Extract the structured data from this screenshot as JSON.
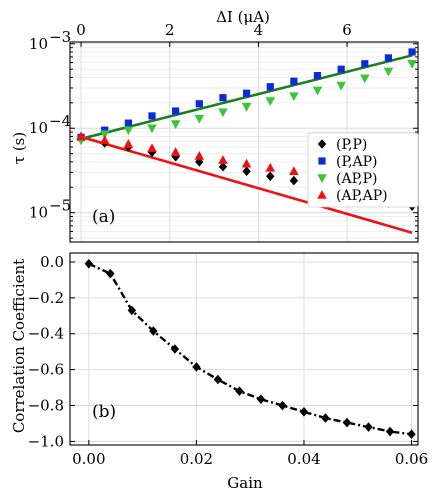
{
  "chart_data": [
    {
      "panel": "(a)",
      "type": "scatter",
      "xlabel_top": "ΔI (μA)",
      "ylabel": "τ (s)",
      "x_top_ticks": [
        "0",
        "2",
        "4",
        "6"
      ],
      "x_top_range": [
        -0.25,
        7.6
      ],
      "y_scale": "log",
      "y_ticks": [
        "10^-5",
        "10^-4",
        "10^-3"
      ],
      "ylim": [
        4.5e-06,
        0.00105
      ],
      "legend_position": "center-right",
      "grid": true,
      "series": [
        {
          "name": "(P,P)",
          "marker": "diamond",
          "color": "#000000",
          "x": [
            0.0,
            0.533,
            1.067,
            1.6,
            2.133,
            2.667,
            3.2,
            3.733,
            4.267,
            4.8,
            5.333,
            5.867,
            6.4,
            6.933,
            7.467
          ],
          "y": [
            7.5e-05,
            6.7e-05,
            6e-05,
            5.2e-05,
            4.6e-05,
            4e-05,
            3.5e-05,
            3.1e-05,
            2.7e-05,
            2.4e-05,
            2.2e-05,
            1.9e-05,
            1.7e-05,
            1.3e-05,
            1.2e-05
          ]
        },
        {
          "name": "(P,AP)",
          "marker": "square",
          "color": "#0b2bd6",
          "x": [
            0.0,
            0.533,
            1.067,
            1.6,
            2.133,
            2.667,
            3.2,
            3.733,
            4.267,
            4.8,
            5.333,
            5.867,
            6.4,
            6.933,
            7.467
          ],
          "y": [
            7.8e-05,
            9.5e-05,
            0.000115,
            0.00014,
            0.00016,
            0.000195,
            0.00023,
            0.00026,
            0.00031,
            0.00036,
            0.00042,
            0.0005,
            0.00058,
            0.00068,
            0.0008
          ]
        },
        {
          "name": "(AP,P)",
          "marker": "triangle-down",
          "color": "#3cc43c",
          "x": [
            0.0,
            0.533,
            1.067,
            1.6,
            2.133,
            2.667,
            3.2,
            3.733,
            4.267,
            4.8,
            5.333,
            5.867,
            6.4,
            6.933,
            7.467
          ],
          "y": [
            7.2e-05,
            8.5e-05,
            9.5e-05,
            0.0001,
            0.000112,
            0.00013,
            0.000155,
            0.00018,
            0.00021,
            0.00024,
            0.00028,
            0.00032,
            0.00039,
            0.00047,
            0.00058
          ]
        },
        {
          "name": "(AP,AP)",
          "marker": "triangle-up",
          "color": "#ee1111",
          "x": [
            0.0,
            0.533,
            1.067,
            1.6,
            2.133,
            2.667,
            3.2,
            3.733,
            4.267,
            4.8,
            5.333,
            5.867,
            6.4,
            6.933,
            7.467
          ],
          "y": [
            8e-05,
            7.2e-05,
            6.5e-05,
            5.8e-05,
            5.2e-05,
            4.7e-05,
            4.2e-05,
            3.8e-05,
            3.4e-05,
            3.1e-05,
            2.8e-05,
            2.5e-05,
            2.3e-05,
            2.1e-05,
            1.9e-05
          ]
        }
      ],
      "fit_lines": [
        {
          "color": "#1e7d1e",
          "x": [
            0.0,
            7.467
          ],
          "y": [
            7.5e-05,
            0.00073
          ]
        },
        {
          "color": "#ee1111",
          "x": [
            0.0,
            7.467
          ],
          "y": [
            7.9e-05,
            5.8e-06
          ]
        }
      ]
    },
    {
      "panel": "(b)",
      "type": "line",
      "xlabel": "Gain",
      "ylabel": "Correlation Coefficient",
      "x_ticks": [
        "0.00",
        "0.02",
        "0.04",
        "0.06"
      ],
      "xlim": [
        -0.0035,
        0.0612
      ],
      "y_ticks": [
        "-1.0",
        "-0.8",
        "-0.6",
        "-0.4",
        "-0.2",
        "0.0"
      ],
      "ylim": [
        -1.02,
        0.05
      ],
      "grid": true,
      "series": [
        {
          "marker": "diamond",
          "color": "#000000",
          "linestyle": "dash-dot",
          "x": [
            0.0,
            0.004,
            0.008,
            0.012,
            0.016,
            0.02,
            0.024,
            0.028,
            0.032,
            0.036,
            0.04,
            0.044,
            0.048,
            0.052,
            0.056,
            0.06
          ],
          "y": [
            -0.01,
            -0.065,
            -0.27,
            -0.385,
            -0.485,
            -0.585,
            -0.655,
            -0.72,
            -0.765,
            -0.8,
            -0.835,
            -0.87,
            -0.895,
            -0.92,
            -0.945,
            -0.96
          ]
        }
      ]
    }
  ],
  "legend_labels": [
    "(P,P)",
    "(P,AP)",
    "(AP,P)",
    "(AP,AP)"
  ],
  "panel_labels": {
    "a": "(a)",
    "b": "(b)"
  },
  "axis_titles": {
    "top_x": "ΔI (μA)",
    "left_y_top": "τ (s)",
    "bottom_x": "Gain",
    "left_y_bottom": "Correlation Coefficient"
  }
}
